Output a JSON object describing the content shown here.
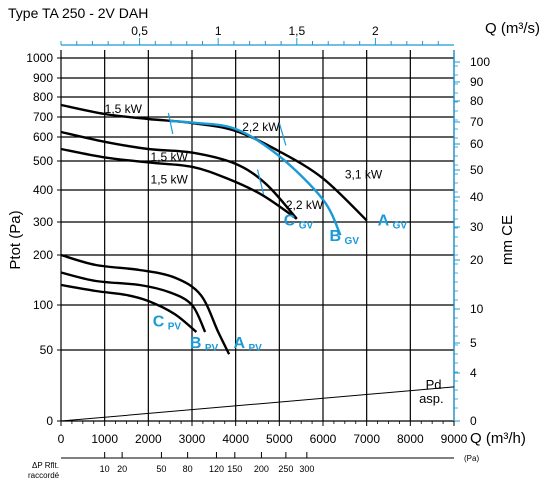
{
  "chart_data": {
    "type": "line",
    "title": "Type TA 250 - 2V DAH",
    "axes": {
      "x_bottom": {
        "label": "Q (m³/h)",
        "range": [
          0,
          9000
        ],
        "ticks": [
          "0",
          "1000",
          "2000",
          "3000",
          "4000",
          "5000",
          "6000",
          "7000",
          "8000",
          "9000"
        ]
      },
      "x_top": {
        "label": "Q (m³/s)",
        "range": [
          0,
          2.5
        ],
        "ticks": [
          {
            "label": "0,5",
            "value": 0.5
          },
          {
            "label": "1",
            "value": 1
          },
          {
            "label": "1,5",
            "value": 1.5
          },
          {
            "label": "2",
            "value": 2
          }
        ]
      },
      "y_left": {
        "label": "Ptot  (Pa)",
        "ticks": [
          "0",
          "50",
          "100",
          "200",
          "300",
          "400",
          "500",
          "600",
          "700",
          "800",
          "900",
          "1000"
        ]
      },
      "y_right": {
        "label": "mm CE",
        "ticks": [
          "0",
          "4",
          "5",
          "10",
          "20",
          "30",
          "40",
          "50",
          "60",
          "70",
          "80",
          "90",
          "100"
        ]
      },
      "dp_scale": {
        "label_line1": "ΔP Rflt.",
        "label_line2": "raccordé",
        "unit": "(Pa)",
        "ticks": [
          {
            "label": "10",
            "q": 1000
          },
          {
            "label": "20",
            "q": 1400
          },
          {
            "label": "50",
            "q": 2300
          },
          {
            "label": "80",
            "q": 2900
          },
          {
            "label": "120",
            "q": 3560
          },
          {
            "label": "150",
            "q": 3980
          },
          {
            "label": "200",
            "q": 4590
          },
          {
            "label": "250",
            "q": 5150
          },
          {
            "label": "300",
            "q": 5630
          }
        ]
      }
    },
    "series": [
      {
        "name": "A GV",
        "color": "#000000",
        "points": [
          [
            0,
            760
          ],
          [
            1000,
            715
          ],
          [
            2000,
            690
          ],
          [
            3000,
            670
          ],
          [
            4000,
            630
          ],
          [
            5000,
            540
          ],
          [
            6000,
            440
          ],
          [
            7000,
            305
          ]
        ]
      },
      {
        "name": "B GV",
        "color": "#1a9bd7",
        "points": [
          [
            2500,
            680
          ],
          [
            3000,
            672
          ],
          [
            4000,
            640
          ],
          [
            5000,
            520
          ],
          [
            6000,
            370
          ],
          [
            6400,
            260
          ]
        ]
      },
      {
        "name": "C GV",
        "color": "#000000",
        "points": [
          [
            0,
            625
          ],
          [
            1000,
            580
          ],
          [
            2000,
            550
          ],
          [
            3000,
            535
          ],
          [
            4000,
            490
          ],
          [
            4700,
            420
          ],
          [
            5400,
            310
          ]
        ]
      },
      {
        "name": "C GV lower",
        "color": "#000000",
        "points": [
          [
            0,
            550
          ],
          [
            1000,
            515
          ],
          [
            2000,
            495
          ],
          [
            3000,
            480
          ],
          [
            3800,
            440
          ],
          [
            4600,
            385
          ],
          [
            5400,
            310
          ]
        ]
      },
      {
        "name": "A PV",
        "color": "#000000",
        "points": [
          [
            0,
            200
          ],
          [
            800,
            180
          ],
          [
            1800,
            170
          ],
          [
            2600,
            155
          ],
          [
            3200,
            120
          ],
          [
            3600,
            70
          ],
          [
            3850,
            47
          ]
        ]
      },
      {
        "name": "B PV",
        "color": "#000000",
        "points": [
          [
            0,
            165
          ],
          [
            800,
            148
          ],
          [
            1800,
            140
          ],
          [
            2500,
            125
          ],
          [
            3000,
            100
          ],
          [
            3300,
            70
          ]
        ]
      },
      {
        "name": "C PV",
        "color": "#000000",
        "points": [
          [
            0,
            140
          ],
          [
            800,
            128
          ],
          [
            1500,
            120
          ],
          [
            2000,
            108
          ],
          [
            2600,
            90
          ],
          [
            3100,
            70
          ]
        ]
      },
      {
        "name": "Pd asp.",
        "color": "#000000",
        "points": [
          [
            0,
            0
          ],
          [
            9000,
            24
          ]
        ]
      }
    ],
    "annotations": {
      "power_labels": [
        {
          "text": "1,5 kW",
          "q": 1000,
          "p": 720
        },
        {
          "text": "2,2 kW",
          "q": 4150,
          "p": 630
        },
        {
          "text": "1,5 kW",
          "q": 2050,
          "p": 500
        },
        {
          "text": "1,5 kW",
          "q": 2050,
          "p": 422
        },
        {
          "text": "3,1 kW",
          "q": 6500,
          "p": 440
        },
        {
          "text": "2,2 kW",
          "q": 5150,
          "p": 340
        }
      ],
      "curve_labels": [
        {
          "text": "C",
          "sub": "GV",
          "q": 5100,
          "p": 290
        },
        {
          "text": "B",
          "sub": "GV",
          "q": 6150,
          "p": 243
        },
        {
          "text": "A",
          "sub": "GV",
          "q": 7250,
          "p": 290
        },
        {
          "text": "C",
          "sub": "PV",
          "q": 2100,
          "p": 76
        },
        {
          "text": "B",
          "sub": "PV",
          "q": 2950,
          "p": 52
        },
        {
          "text": "A",
          "sub": "PV",
          "q": 3950,
          "p": 52
        }
      ],
      "pd_label": {
        "line1": "Pd",
        "line2": "asp."
      }
    }
  }
}
